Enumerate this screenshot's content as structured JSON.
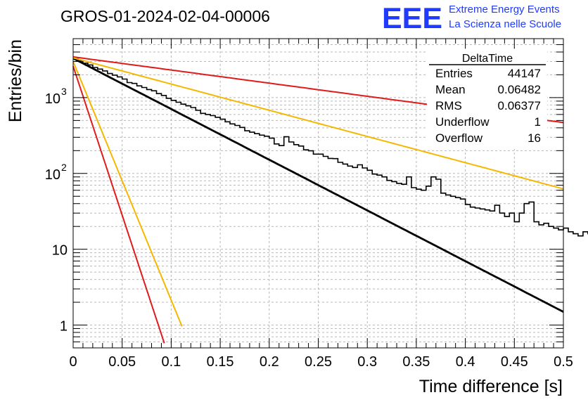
{
  "header": {
    "title": "GROS-01-2024-02-04-00006",
    "logo_text": "EEE",
    "logo_line1": "Extreme Energy Events",
    "logo_line2": "La Scienza nelle Scuole"
  },
  "colors": {
    "histogram": "#000000",
    "fit": "#000000",
    "red_band": "#e11a1a",
    "yellow_band": "#f5b800",
    "logo": "#1f3bff"
  },
  "stats": {
    "title": "DeltaTime",
    "rows": [
      {
        "label": "Entries",
        "value": "44147"
      },
      {
        "label": "Mean",
        "value": "0.06482"
      },
      {
        "label": "RMS",
        "value": "0.06377"
      },
      {
        "label": "Underflow",
        "value": "1"
      },
      {
        "label": "Overflow",
        "value": "16"
      }
    ]
  },
  "chart_data": {
    "type": "histogram",
    "title": "GROS-01-2024-02-04-00006",
    "xlabel": "Time difference [s]",
    "ylabel": "Entries/bin",
    "xlim": [
      0,
      0.5
    ],
    "ylim": [
      0.5,
      6000
    ],
    "yscale": "log",
    "grid": true,
    "x_ticks": [
      "0",
      "0.05",
      "0.1",
      "0.15",
      "0.2",
      "0.25",
      "0.3",
      "0.35",
      "0.4",
      "0.45",
      "0.5"
    ],
    "y_ticks": [
      {
        "value": 1,
        "label": "1"
      },
      {
        "value": 10,
        "label": "10"
      },
      {
        "value": 100,
        "label": "10^2"
      },
      {
        "value": 1000,
        "label": "10^3"
      }
    ],
    "bin_width": 0.005,
    "histogram": [
      3300,
      3050,
      2850,
      2700,
      2500,
      2380,
      2250,
      2080,
      1980,
      1880,
      1760,
      1580,
      1540,
      1430,
      1360,
      1280,
      1230,
      1130,
      1070,
      980,
      920,
      870,
      820,
      780,
      740,
      680,
      620,
      600,
      580,
      550,
      520,
      480,
      450,
      430,
      405,
      365,
      350,
      335,
      320,
      310,
      292,
      245,
      233,
      305,
      260,
      240,
      230,
      205,
      199,
      180,
      180,
      168,
      158,
      157,
      140,
      133,
      125,
      120,
      130,
      118,
      110,
      98,
      95,
      90,
      81,
      78,
      74,
      72,
      90,
      65,
      62,
      60,
      68,
      90,
      84,
      55,
      52,
      50,
      48,
      46,
      39,
      36,
      35,
      34,
      33,
      32,
      38,
      30,
      27,
      30,
      23,
      30,
      40,
      42,
      23,
      21,
      22,
      20,
      19,
      18,
      19,
      17,
      16,
      15,
      17,
      16,
      15,
      15,
      14,
      13,
      13,
      12,
      11,
      13,
      16,
      9.5,
      10.5,
      12,
      11,
      12,
      11,
      9,
      12,
      10,
      13,
      13,
      8,
      7.7,
      8,
      9,
      13,
      5.6,
      3.6,
      4,
      3,
      3.6,
      4,
      3,
      2.5,
      4,
      3,
      1,
      2,
      1,
      3,
      4,
      1,
      0.4,
      0.4,
      1,
      0.4,
      1,
      1,
      0.4,
      1,
      2,
      1,
      1
    ],
    "series": [
      {
        "name": "",
        "kind": "exponential fit",
        "A": 3300,
        "rate": 15.4,
        "color": "#000000"
      },
      {
        "name": "",
        "kind": "band",
        "A": 3450,
        "rate": 3.99,
        "color": "#e11a1a"
      },
      {
        "name": "",
        "kind": "band",
        "A": 3350,
        "rate": 7.96,
        "color": "#f5b800"
      },
      {
        "name": "",
        "kind": "band",
        "A": 3000,
        "rate": 72.5,
        "color": "#f5b800",
        "x_end": 0.111
      },
      {
        "name": "",
        "kind": "band",
        "A": 2600,
        "rate": 90.5,
        "color": "#e11a1a",
        "x_end": 0.093
      }
    ]
  }
}
